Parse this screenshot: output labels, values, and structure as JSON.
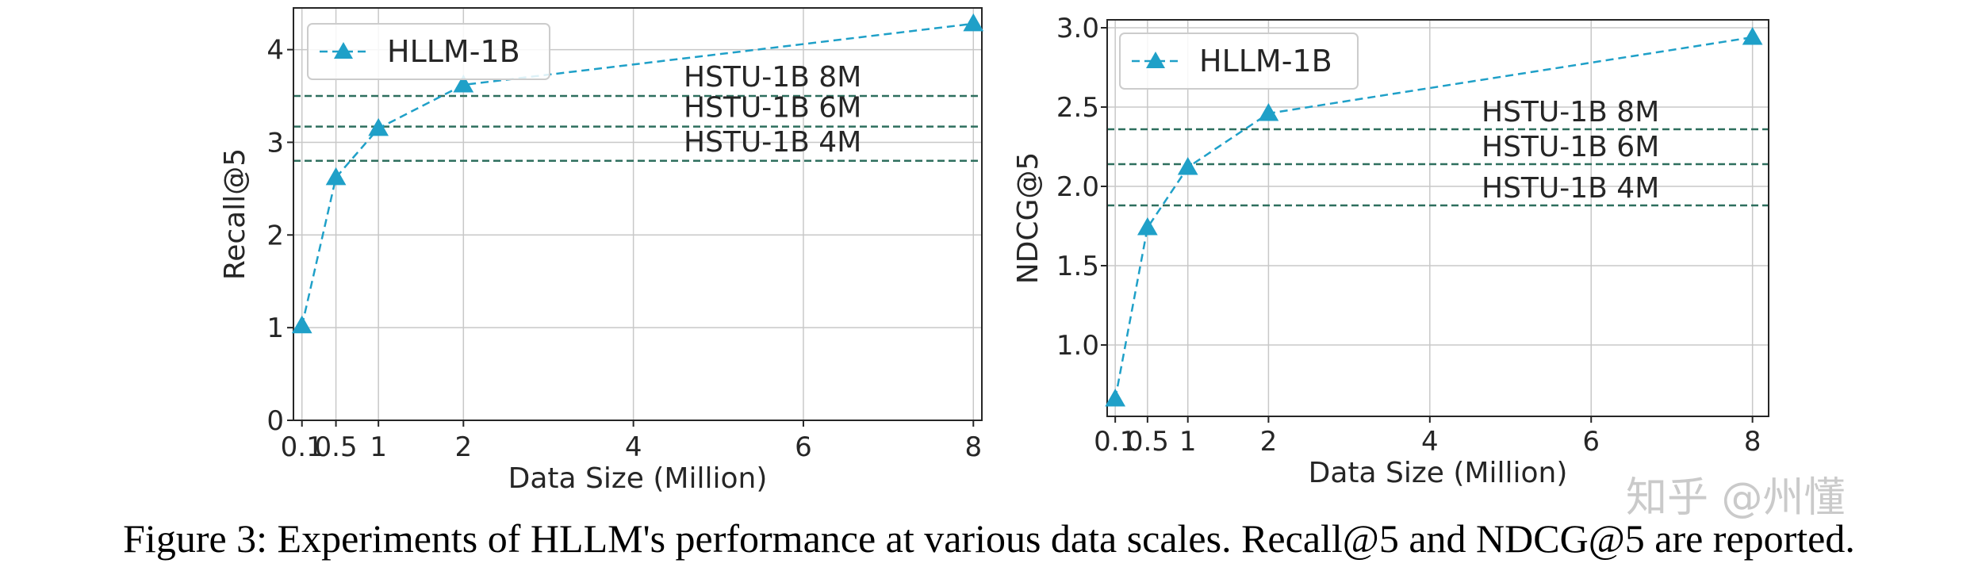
{
  "caption": "Figure 3: Experiments of HLLM's performance at various data scales. Recall@5 and NDCG@5 are reported.",
  "watermark": "知乎 @州懂",
  "colors": {
    "series": "#1fa0c8",
    "reference": "#2e6f5e",
    "grid": "#c8c8c8",
    "axis": "#262626"
  },
  "chart_data": [
    {
      "type": "line",
      "title": "",
      "xlabel": "Data Size (Million)",
      "ylabel": "Recall@5",
      "x": [
        0.1,
        0.5,
        1,
        2,
        4,
        6,
        8
      ],
      "xticks": [
        0.1,
        0.5,
        1,
        2,
        4,
        6,
        8
      ],
      "xtick_labels": [
        "0.1",
        "0.5",
        "1",
        "2",
        "4",
        "6",
        "8"
      ],
      "yticks": [
        0,
        1,
        2,
        3,
        4
      ],
      "ytick_labels": [
        "0",
        "1",
        "2",
        "3",
        "4"
      ],
      "ylim": [
        0,
        4.45
      ],
      "grid": true,
      "legend_position": "top-left",
      "series": [
        {
          "name": "HLLM-1B",
          "marker": "triangle",
          "style": "dashed",
          "x": [
            0.1,
            0.5,
            1,
            2,
            8
          ],
          "values": [
            1.02,
            2.62,
            3.15,
            3.62,
            4.28
          ]
        }
      ],
      "reference_lines": [
        {
          "label": "HSTU-1B 8M",
          "value": 3.5
        },
        {
          "label": "HSTU-1B 6M",
          "value": 3.17
        },
        {
          "label": "HSTU-1B 4M",
          "value": 2.8
        }
      ]
    },
    {
      "type": "line",
      "title": "",
      "xlabel": "Data Size (Million)",
      "ylabel": "NDCG@5",
      "x": [
        0.1,
        0.5,
        1,
        2,
        4,
        6,
        8
      ],
      "xticks": [
        0.1,
        0.5,
        1,
        2,
        4,
        6,
        8
      ],
      "xtick_labels": [
        "0.1",
        "0.5",
        "1",
        "2",
        "4",
        "6",
        "8"
      ],
      "yticks": [
        1.0,
        1.5,
        2.0,
        2.5,
        3.0
      ],
      "ytick_labels": [
        "1.0",
        "1.5",
        "2.0",
        "2.5",
        "3.0"
      ],
      "ylim": [
        0.55,
        3.05
      ],
      "grid": true,
      "legend_position": "top-left",
      "series": [
        {
          "name": "HLLM-1B",
          "marker": "triangle",
          "style": "dashed",
          "x": [
            0.1,
            0.5,
            1,
            2,
            8
          ],
          "values": [
            0.66,
            1.74,
            2.12,
            2.46,
            2.94
          ]
        }
      ],
      "reference_lines": [
        {
          "label": "HSTU-1B 8M",
          "value": 2.36
        },
        {
          "label": "HSTU-1B 6M",
          "value": 2.14
        },
        {
          "label": "HSTU-1B 4M",
          "value": 1.88
        }
      ]
    }
  ]
}
